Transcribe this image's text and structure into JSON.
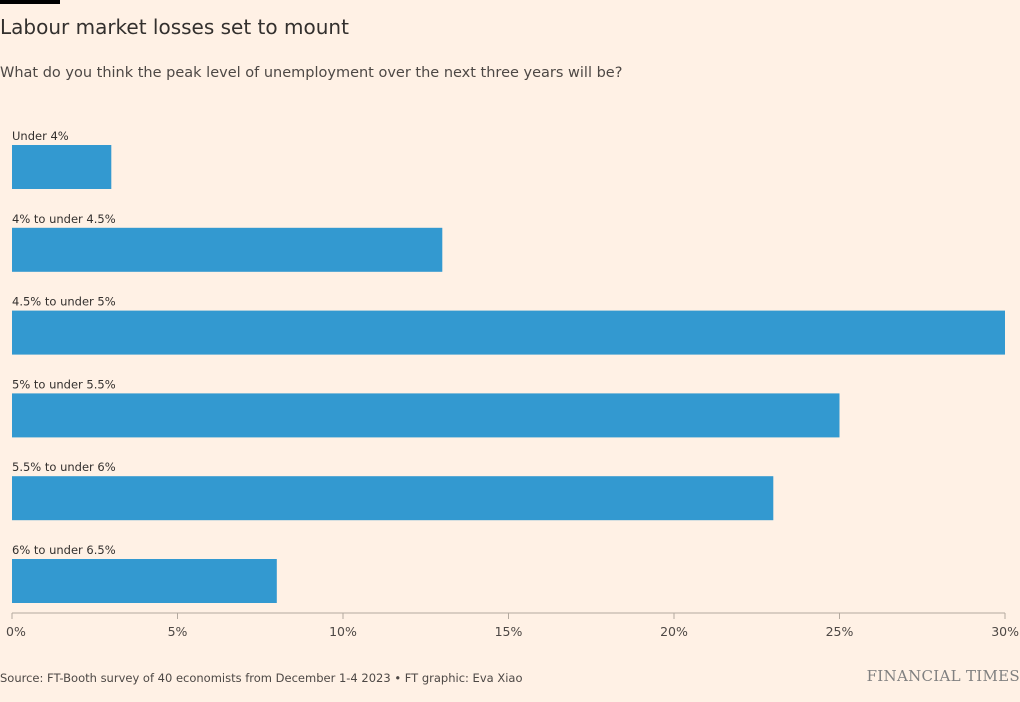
{
  "header": {
    "title": "Labour market losses set to mount",
    "subtitle": "What do you think the peak level of unemployment over the next three years will be?"
  },
  "footer": {
    "source": "Source: FT-Booth survey of 40 economists from December 1-4 2023 • FT graphic: Eva Xiao",
    "brand": "FINANCIAL TIMES"
  },
  "colors": {
    "bar": "#3399D0",
    "background": "#FFF1E5",
    "axis": "#B3A99F",
    "text": "#33302E"
  },
  "chart_data": {
    "type": "bar",
    "orientation": "horizontal",
    "title": "Labour market losses set to mount",
    "subtitle": "What do you think the peak level of unemployment over the next three years will be?",
    "categories": [
      "Under 4%",
      "4% to under 4.5%",
      "4.5% to under 5%",
      "5% to under 5.5%",
      "5.5% to under 6%",
      "6% to under 6.5%"
    ],
    "values": [
      3,
      13,
      30,
      25,
      23,
      8
    ],
    "xlim": [
      0,
      30
    ],
    "xticks": [
      0,
      5,
      10,
      15,
      20,
      25,
      30
    ],
    "xtick_labels": [
      "0%",
      "5%",
      "10%",
      "15%",
      "20%",
      "25%",
      "30%"
    ],
    "xlabel": "",
    "ylabel": "",
    "grid": false,
    "legend": "none"
  }
}
